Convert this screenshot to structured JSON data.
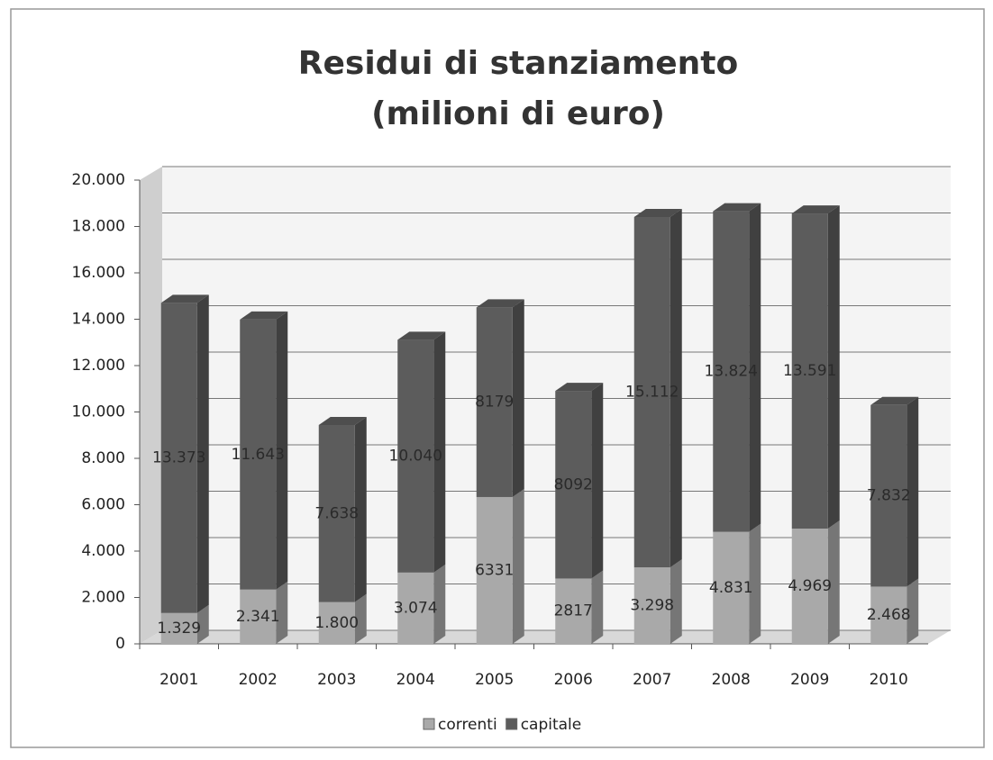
{
  "chart_data": {
    "type": "stacked_bar_3d",
    "title": "Residui di stanziamento",
    "subtitle": "(milioni di euro)",
    "categories": [
      "2001",
      "2002",
      "2003",
      "2004",
      "2005",
      "2006",
      "2007",
      "2008",
      "2009",
      "2010"
    ],
    "series": [
      {
        "name": "correnti",
        "color": "#a9a9a9",
        "values": [
          1329,
          2341,
          1800,
          3074,
          6331,
          2817,
          3298,
          4831,
          4969,
          2468
        ],
        "value_labels": [
          "1.329",
          "2.341",
          "1.800",
          "3.074",
          "6331",
          "2817",
          "3.298",
          "4.831",
          "4.969",
          "2.468"
        ]
      },
      {
        "name": "capitale",
        "color": "#5c5c5c",
        "values": [
          13373,
          11643,
          7638,
          10040,
          8179,
          8092,
          15112,
          13824,
          13591,
          7832
        ],
        "value_labels": [
          "13.373",
          "11.643",
          "7.638",
          "10.040",
          "8179",
          "8092",
          "15.112",
          "13.824",
          "13.591",
          "7.832"
        ]
      }
    ],
    "ylim": [
      0,
      20000
    ],
    "yticks": [
      0,
      {
        "value": 2000,
        "label": "2.000"
      },
      {
        "value": 4000,
        "label": "4.000"
      },
      {
        "value": 6000,
        "label": "6.000"
      },
      {
        "value": 8000,
        "label": "8.000"
      },
      {
        "value": 10000,
        "label": "10.000"
      },
      {
        "value": 12000,
        "label": "12.000"
      },
      {
        "value": 14000,
        "label": "14.000"
      },
      {
        "value": 16000,
        "label": "16.000"
      },
      {
        "value": 18000,
        "label": "18.000"
      },
      {
        "value": 20000,
        "label": "20.000"
      }
    ],
    "grid": true,
    "legend": "bottom"
  }
}
